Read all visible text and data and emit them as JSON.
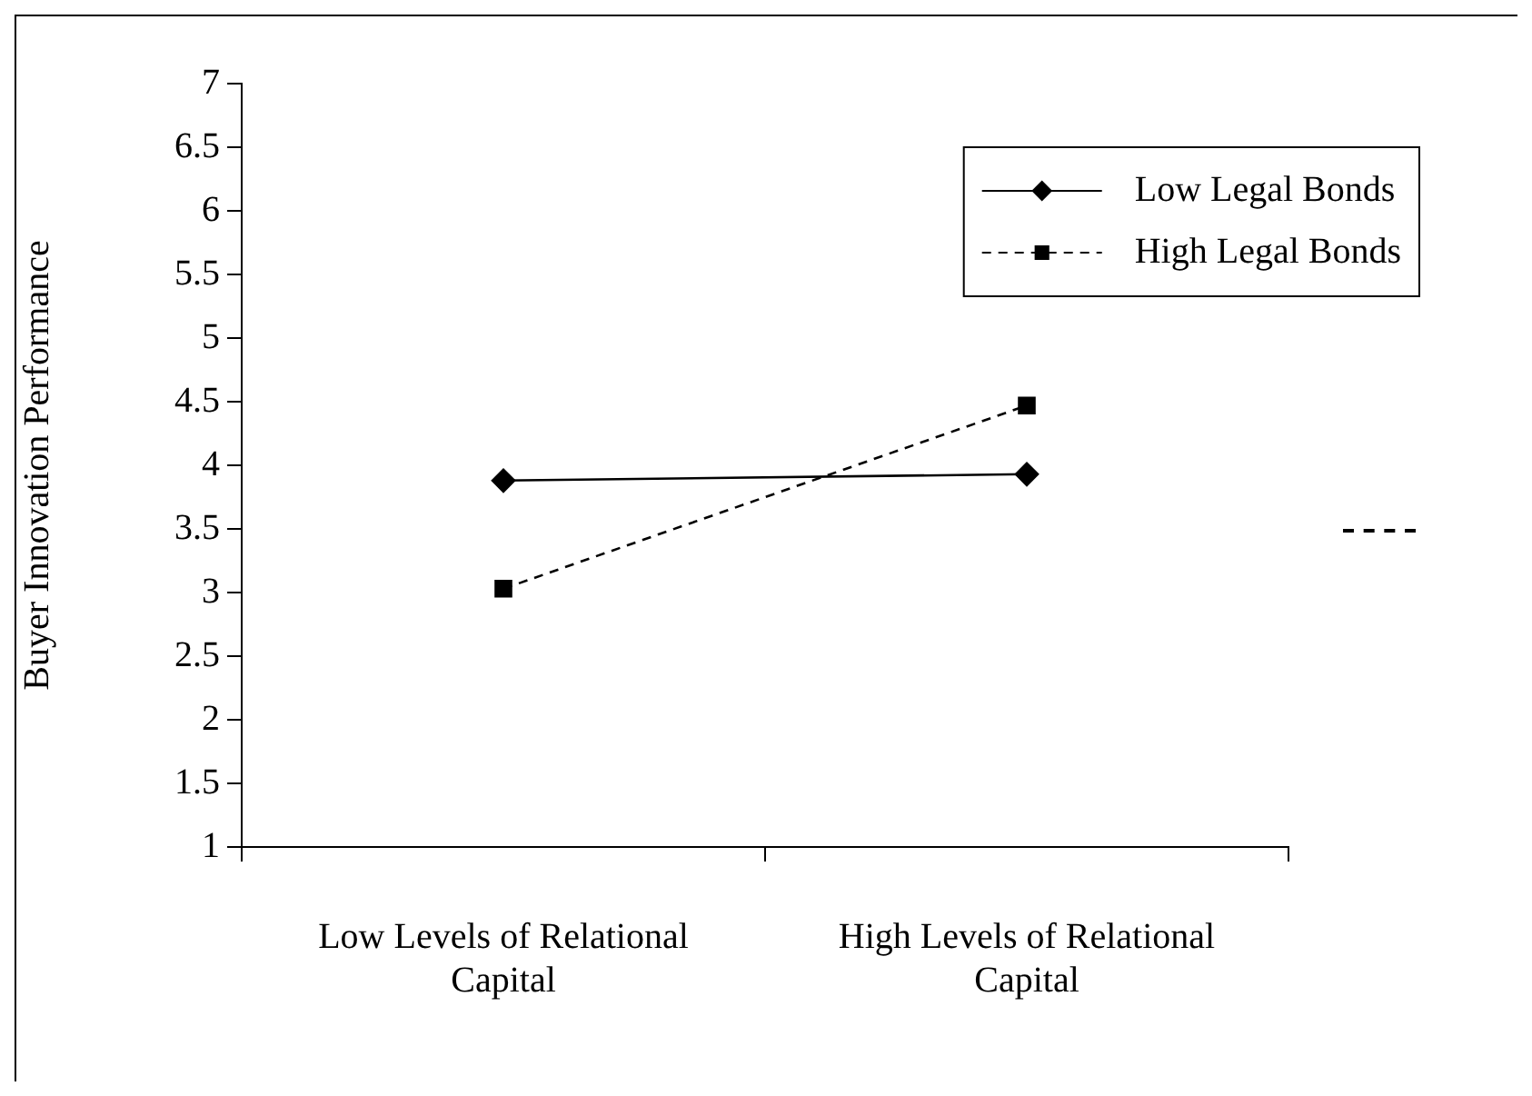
{
  "chart_data": {
    "type": "line",
    "ylabel": "Buyer Innovation Performance",
    "categories": [
      "Low Levels of Relational Capital",
      "High Levels of Relational Capital"
    ],
    "series": [
      {
        "name": "Low Legal Bonds",
        "color": "#000000",
        "values": [
          3.88,
          3.93
        ],
        "marker": "diamond",
        "line_style": "solid"
      },
      {
        "name": "High Legal Bonds",
        "color": "#000000",
        "values": [
          3.03,
          4.47
        ],
        "marker": "square",
        "line_style": "dashed"
      }
    ],
    "ylim": [
      1,
      7
    ],
    "yticks": [
      1,
      1.5,
      2,
      2.5,
      3,
      3.5,
      4,
      4.5,
      5,
      5.5,
      6,
      6.5,
      7
    ],
    "grid": false,
    "legend": "top right"
  }
}
